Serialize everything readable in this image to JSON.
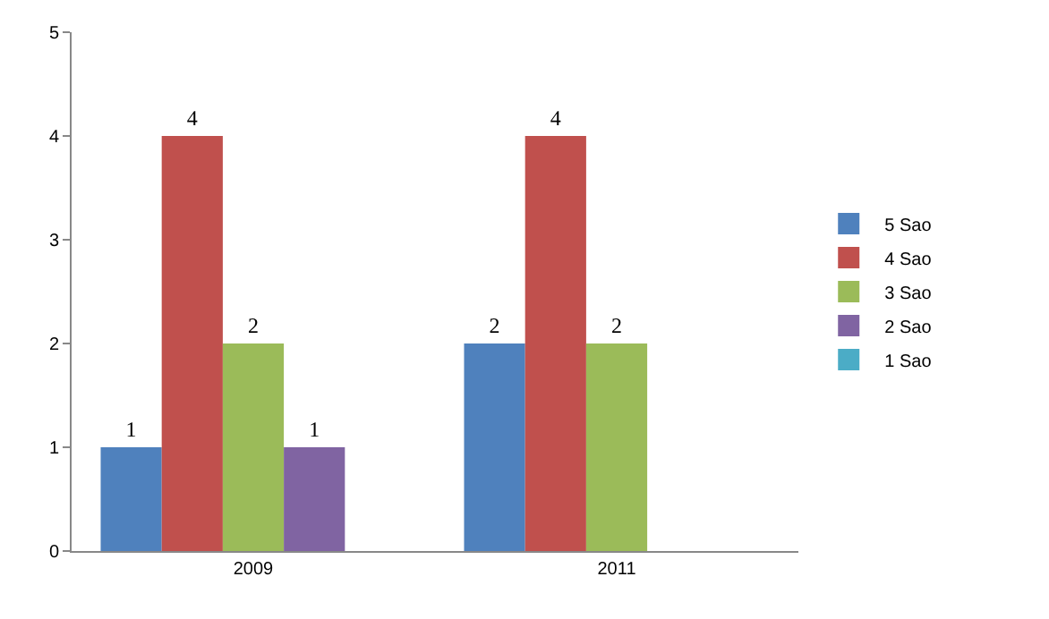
{
  "chart_data": {
    "type": "bar",
    "categories": [
      "2009",
      "2011"
    ],
    "series": [
      {
        "name": "5 Sao",
        "color": "#4f81bd",
        "values": [
          1,
          2
        ]
      },
      {
        "name": "4 Sao",
        "color": "#c0504d",
        "values": [
          4,
          4
        ]
      },
      {
        "name": "3 Sao",
        "color": "#9bbb59",
        "values": [
          2,
          2
        ]
      },
      {
        "name": "2 Sao",
        "color": "#8064a2",
        "values": [
          1,
          null
        ]
      },
      {
        "name": "1 Sao",
        "color": "#4bacc6",
        "values": [
          null,
          null
        ]
      }
    ],
    "ylim": [
      0,
      5
    ],
    "yticks": [
      0,
      1,
      2,
      3,
      4,
      5
    ],
    "grid": false,
    "legend": "right",
    "data_labels": true
  }
}
